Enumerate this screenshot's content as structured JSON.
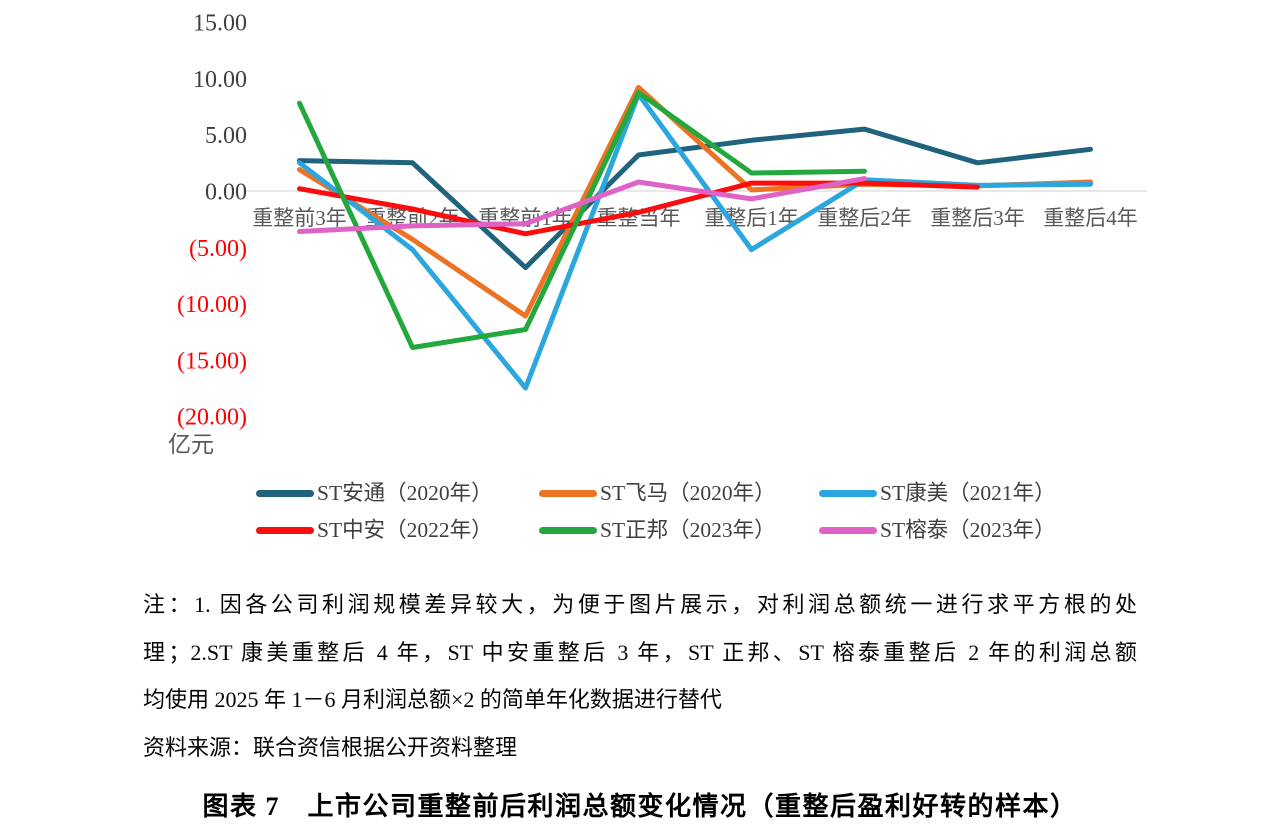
{
  "chart_data": {
    "type": "line",
    "title": "",
    "unit_label": "亿元",
    "xlabel": "",
    "ylabel": "亿元",
    "categories": [
      "重整前3年",
      "重整前2年",
      "重整前1年",
      "重整当年",
      "重整后1年",
      "重整后2年",
      "重整后3年",
      "重整后4年"
    ],
    "y_ticks": [
      15,
      10,
      5,
      0,
      -5,
      -10,
      -15,
      -20
    ],
    "y_tick_labels": [
      "15.00",
      "10.00",
      "5.00",
      "0.00",
      "(5.00)",
      "(10.00)",
      "(15.00)",
      "(20.00)"
    ],
    "ylim": [
      -20,
      15
    ],
    "grid": "zero-line-only",
    "legend_position": "bottom",
    "series": [
      {
        "slug": "st-antong",
        "name": "ST安通（2020年）",
        "color": "#1F637E",
        "values": [
          2.7,
          2.5,
          -6.8,
          3.2,
          4.5,
          5.5,
          2.5,
          3.7
        ]
      },
      {
        "slug": "st-feima",
        "name": "ST飞马（2020年）",
        "color": "#ED7223",
        "values": [
          1.9,
          -4.3,
          -11.1,
          9.2,
          0.1,
          0.6,
          0.45,
          0.8
        ]
      },
      {
        "slug": "st-kangmei",
        "name": "ST康美（2021年）",
        "color": "#2BA6DE",
        "values": [
          2.5,
          -5.2,
          -17.5,
          8.6,
          -5.2,
          1.0,
          0.5,
          0.6
        ]
      },
      {
        "slug": "st-zhongan",
        "name": "ST中安（2022年）",
        "color": "#F90D0D",
        "values": [
          0.2,
          -1.6,
          -3.8,
          -1.9,
          0.7,
          0.7,
          0.35,
          null
        ]
      },
      {
        "slug": "st-zhengbang",
        "name": "ST正邦（2023年）",
        "color": "#24A83E",
        "values": [
          7.8,
          -13.9,
          -12.3,
          8.75,
          1.6,
          1.75,
          null,
          null
        ]
      },
      {
        "slug": "st-rongtai",
        "name": "ST榕泰（2023年）",
        "color": "#DF63C6",
        "values": [
          -3.6,
          -3.1,
          -2.9,
          0.8,
          -0.7,
          1.1,
          null,
          null
        ]
      }
    ],
    "axis_colors": {
      "zero_line": "#D9D9D9",
      "y_label_positive": "#3F3F3F",
      "y_label_negative": "#FF0000",
      "x_label": "#595959",
      "unit_label": "#595959"
    }
  },
  "notes": {
    "lines": [
      "注：1. 因各公司利润规模差异较大，为便于图片展示，对利润总额统一进行求平方根的处",
      "理；2.ST 康美重整后 4 年，ST 中安重整后 3 年，ST 正邦、ST 榕泰重整后 2 年的利润总额",
      "均使用 2025 年 1－6 月利润总额×2 的简单年化数据进行替代",
      "资料来源：联合资信根据公开资料整理"
    ]
  },
  "caption": "图表 7　上市公司重整前后利润总额变化情况（重整后盈利好转的样本）"
}
